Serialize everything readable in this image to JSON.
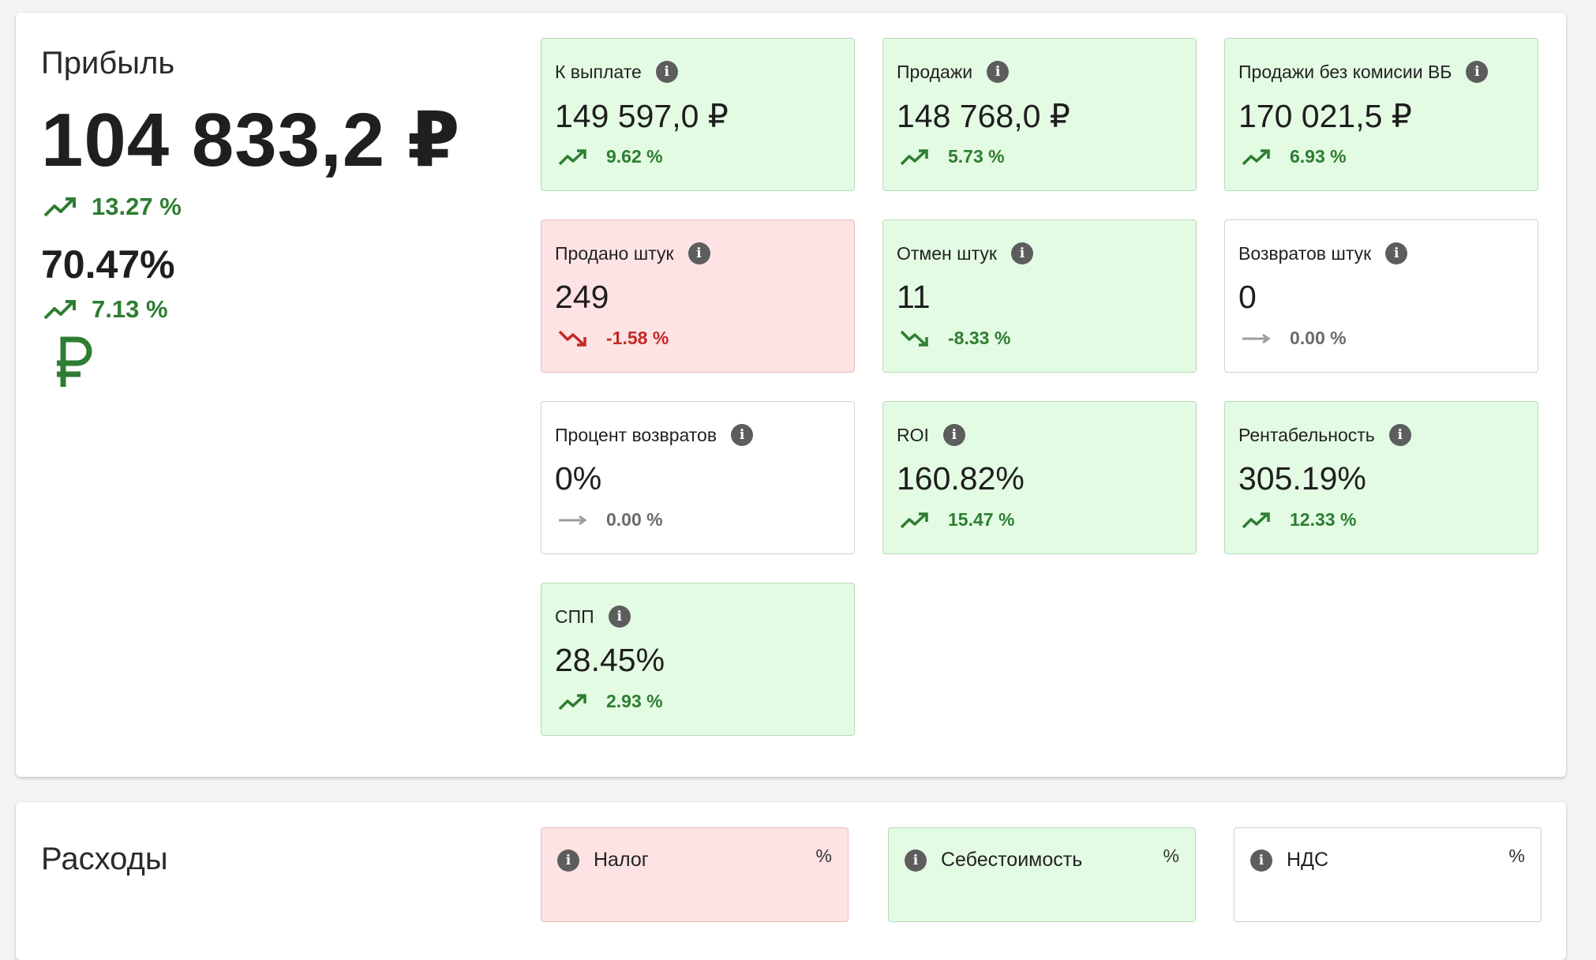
{
  "profit": {
    "title": "Прибыль",
    "value": "104 833,2 ₽",
    "value_trend": "13.27 %",
    "margin": "70.47%",
    "margin_trend": "7.13 %",
    "currency_icon": "ruble-icon",
    "cards": [
      {
        "label": "К выплате",
        "value": "149 597,0 ₽",
        "trend": "9.62 %",
        "direction": "up",
        "status": "positive"
      },
      {
        "label": "Продажи",
        "value": "148 768,0 ₽",
        "trend": "5.73 %",
        "direction": "up",
        "status": "positive"
      },
      {
        "label": "Продажи без комисии ВБ",
        "value": "170 021,5 ₽",
        "trend": "6.93 %",
        "direction": "up",
        "status": "positive"
      },
      {
        "label": "Продано штук",
        "value": "249",
        "trend": "-1.58 %",
        "direction": "down",
        "status": "negative"
      },
      {
        "label": "Отмен штук",
        "value": "11",
        "trend": "-8.33 %",
        "direction": "down",
        "status": "positive"
      },
      {
        "label": "Возвратов штук",
        "value": "0",
        "trend": "0.00 %",
        "direction": "flat",
        "status": "neutral"
      },
      {
        "label": "Процент возвратов",
        "value": "0%",
        "trend": "0.00 %",
        "direction": "flat",
        "status": "neutral"
      },
      {
        "label": "ROI",
        "value": "160.82%",
        "trend": "15.47 %",
        "direction": "up",
        "status": "positive"
      },
      {
        "label": "Рентабельность",
        "value": "305.19%",
        "trend": "12.33 %",
        "direction": "up",
        "status": "positive"
      },
      {
        "label": "СПП",
        "value": "28.45%",
        "trend": "2.93 %",
        "direction": "up",
        "status": "positive"
      }
    ]
  },
  "expenses": {
    "title": "Расходы",
    "cards": [
      {
        "label": "Налог",
        "unit": "%",
        "status": "negative"
      },
      {
        "label": "Себестоимость",
        "unit": "%",
        "status": "positive"
      },
      {
        "label": "НДС",
        "unit": "%",
        "status": "neutral"
      }
    ]
  },
  "colors": {
    "up": "#2e7d32",
    "down": "#c62828",
    "flat": "#9e9e9e",
    "positive_bg": "#e3fbe3",
    "negative_bg": "#fde3e3"
  }
}
